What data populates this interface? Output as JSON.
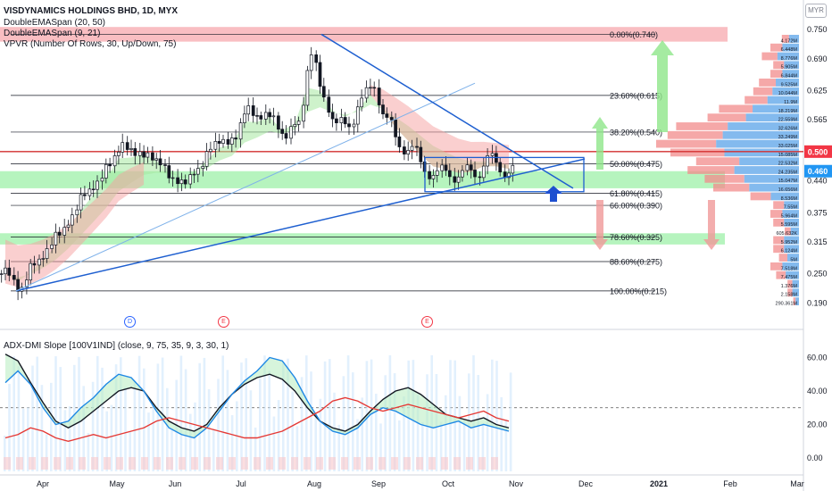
{
  "header": {
    "title": "VISDYNAMICS HOLDINGS BHD, 1D, MYX",
    "indicator_1": "DoubleEMASpan (20, 50)",
    "indicator_2": "DoubleEMASpan (9, 21)",
    "indicator_3": "VPVR (Number Of Rows, 30, Up/Down, 75)",
    "currency": "MYR"
  },
  "oscillator": {
    "title": "ADX-DMI Slope [100V1IND] (close, 9, 75, 35, 9, 3, 30, 1)"
  },
  "events": [
    "D",
    "E",
    "E"
  ],
  "colors": {
    "up": "#26a69a",
    "down": "#ef5350",
    "trend": "#1e5fd0",
    "fib": "#131722",
    "pink_zone": "#f7a8ad",
    "green_zone": "#9ef0a8",
    "price_label": "#f23645",
    "last_label": "#2196f3"
  },
  "chart_data": [
    {
      "type": "candlestick",
      "title": "VISDYNAMICS HOLDINGS BHD, 1D, MYX",
      "x_ticks": [
        "Apr",
        "May",
        "Jun",
        "Jul",
        "Aug",
        "Sep",
        "Oct",
        "Nov",
        "Dec",
        "2021",
        "Feb",
        "Mar"
      ],
      "y_ticks": [
        0.19,
        0.25,
        0.315,
        0.375,
        0.44,
        0.5,
        0.565,
        0.625,
        0.69,
        0.75
      ],
      "y_unit": "MYR",
      "ylim": [
        0.16,
        0.77
      ],
      "price_labels": {
        "high_level": "0.500",
        "last": "0.460"
      },
      "fib_levels": [
        {
          "label": "0.00%(0.740)",
          "value": 0.74
        },
        {
          "label": "23.60%(0.615)",
          "value": 0.615
        },
        {
          "label": "38.20%(0.540)",
          "value": 0.54
        },
        {
          "label": "50.00%(0.475)",
          "value": 0.475
        },
        {
          "label": "61.80%(0.415)",
          "value": 0.415
        },
        {
          "label": "66.00%(0.390)",
          "value": 0.39
        },
        {
          "label": "78.60%(0.325)",
          "value": 0.325
        },
        {
          "label": "88.60%(0.275)",
          "value": 0.275
        },
        {
          "label": "100.00%(0.215)",
          "value": 0.215
        }
      ],
      "zones": [
        {
          "name": "resistance",
          "from": 0.725,
          "to": 0.755
        },
        {
          "name": "support",
          "from": 0.425,
          "to": 0.46
        },
        {
          "name": "support_low",
          "from": 0.31,
          "to": 0.333
        }
      ],
      "horizontal_line": 0.5,
      "closes_weekly": [
        0.25,
        0.22,
        0.27,
        0.3,
        0.33,
        0.37,
        0.41,
        0.44,
        0.47,
        0.52,
        0.49,
        0.5,
        0.47,
        0.45,
        0.43,
        0.47,
        0.5,
        0.53,
        0.52,
        0.6,
        0.56,
        0.58,
        0.52,
        0.57,
        0.69,
        0.62,
        0.55,
        0.56,
        0.6,
        0.64,
        0.56,
        0.52,
        0.5,
        0.47,
        0.45,
        0.46,
        0.45,
        0.46,
        0.48,
        0.47,
        0.46
      ]
    },
    {
      "type": "volume-profile",
      "value_labels": [
        "4.172M",
        "6.448M",
        "8.776M",
        "5.905M",
        "6.844M",
        "9.525M",
        "10.044M",
        "11.9M",
        "18.219M",
        "22.559M",
        "32.626M",
        "33.249M",
        "33.025M",
        "15.085M",
        "22.532M",
        "24.235M",
        "15.047M",
        "16.656M",
        "8.536M",
        "7.55M",
        "5.964M",
        "5.595M",
        "605.632K",
        "5.952M",
        "6.124M",
        "5M",
        "7.518M",
        "7.475M",
        "1.376M",
        "2.158M",
        "290.361M"
      ],
      "values": [
        6,
        10,
        13,
        9,
        10,
        14,
        16,
        19,
        28,
        32,
        43,
        46,
        50,
        45,
        36,
        39,
        33,
        30,
        17,
        9,
        10,
        9,
        5,
        9,
        9,
        7,
        10,
        8,
        4,
        4,
        2
      ]
    },
    {
      "type": "line",
      "title": "ADX-DMI Slope [100V1IND] (close, 9, 75, 35, 9, 3, 30, 1)",
      "y_ticks": [
        0,
        20,
        40,
        60
      ],
      "ylim": [
        -8,
        72
      ],
      "reference_line": 30,
      "series": [
        {
          "name": "ADX",
          "values": [
            62,
            58,
            45,
            33,
            22,
            18,
            22,
            28,
            34,
            40,
            42,
            40,
            30,
            22,
            18,
            16,
            20,
            30,
            38,
            44,
            48,
            50,
            47,
            40,
            30,
            22,
            18,
            16,
            20,
            28,
            35,
            40,
            42,
            38,
            32,
            26,
            24,
            22,
            24,
            20,
            18
          ]
        },
        {
          "name": "+DI",
          "values": [
            45,
            52,
            44,
            30,
            20,
            22,
            30,
            36,
            44,
            50,
            48,
            40,
            28,
            18,
            14,
            12,
            18,
            28,
            38,
            46,
            52,
            60,
            58,
            48,
            34,
            22,
            16,
            14,
            18,
            26,
            30,
            28,
            24,
            20,
            18,
            20,
            22,
            18,
            20,
            18,
            16
          ]
        },
        {
          "name": "-DI",
          "values": [
            12,
            14,
            18,
            16,
            12,
            10,
            12,
            14,
            12,
            14,
            16,
            18,
            22,
            24,
            22,
            20,
            18,
            16,
            14,
            12,
            12,
            14,
            16,
            20,
            24,
            28,
            34,
            36,
            34,
            30,
            28,
            30,
            32,
            30,
            28,
            26,
            24,
            26,
            28,
            24,
            22
          ]
        }
      ]
    }
  ]
}
